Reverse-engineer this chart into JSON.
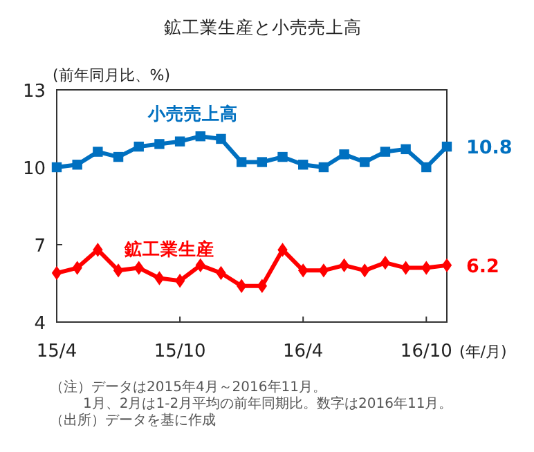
{
  "chart_data": {
    "type": "line",
    "title": "鉱工業生産と小売売上高",
    "ylabel": "(前年同月比、%)",
    "xlabel": "(年/月)",
    "categories": [
      "15/4",
      null,
      null,
      null,
      null,
      null,
      "15/10",
      null,
      null,
      null,
      null,
      null,
      "16/4",
      null,
      null,
      null,
      null,
      null,
      "16/10",
      null
    ],
    "series": [
      {
        "name": "小売売上高",
        "color": "#0070c0",
        "marker": "square",
        "values": [
          10.0,
          10.1,
          10.6,
          10.4,
          10.8,
          10.9,
          11.0,
          11.2,
          11.1,
          10.2,
          10.2,
          10.4,
          10.1,
          10.0,
          10.5,
          10.2,
          10.6,
          10.7,
          10.0,
          10.8
        ],
        "value_labels": [
          null,
          null,
          null,
          null,
          null,
          null,
          null,
          null,
          null,
          null,
          null,
          null,
          null,
          null,
          null,
          null,
          null,
          null,
          null,
          "10.8"
        ]
      },
      {
        "name": "鉱工業生産",
        "color": "#ff0000",
        "marker": "diamond",
        "values": [
          5.9,
          6.1,
          6.8,
          6.0,
          6.1,
          5.7,
          5.6,
          6.2,
          5.9,
          5.4,
          5.4,
          6.8,
          6.0,
          6.0,
          6.2,
          6.0,
          6.3,
          6.1,
          6.1,
          6.2
        ],
        "value_labels": [
          null,
          null,
          null,
          null,
          null,
          null,
          null,
          null,
          null,
          null,
          null,
          null,
          null,
          null,
          null,
          null,
          null,
          null,
          null,
          "6.2"
        ]
      }
    ],
    "ylim": [
      4,
      13
    ],
    "yticks": [
      4,
      7,
      10,
      13
    ],
    "grid": false,
    "annotations": [
      "（注）データは2015年4月～2016年11月。",
      "1月、2月は1-2月平均の前年同期比。数字は2016年11月。",
      "（出所）データを基に作成"
    ]
  }
}
